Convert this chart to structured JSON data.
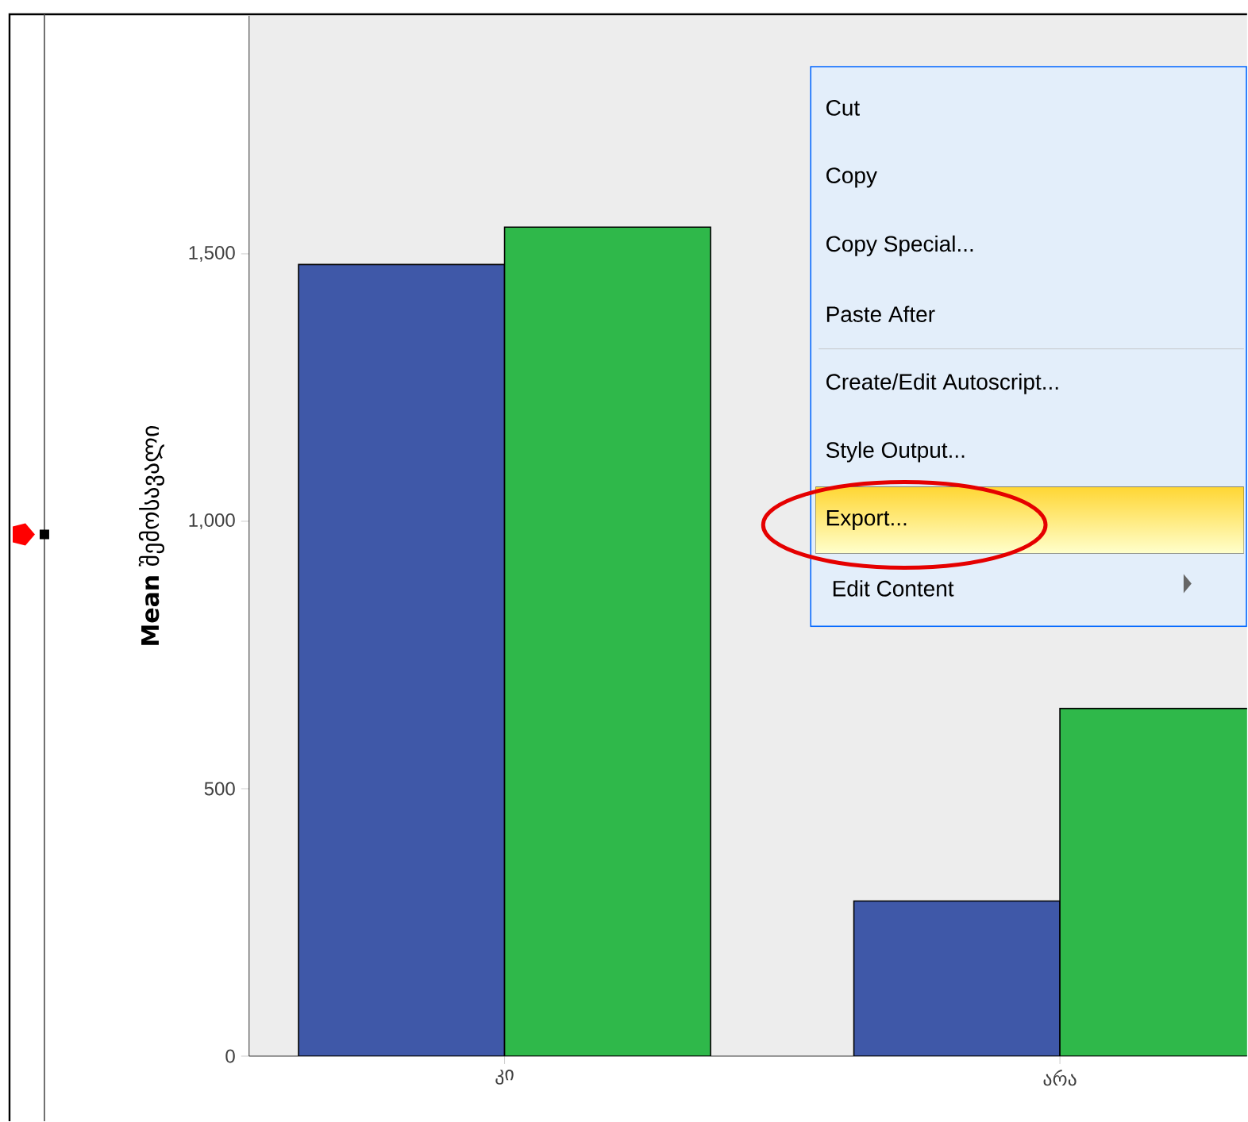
{
  "chart_data": {
    "type": "bar",
    "ylabel": "**Mean** შემოსავალი",
    "categories": [
      "კი",
      "არა"
    ],
    "series": [
      {
        "color": "#3f58a8",
        "values": [
          1480,
          290
        ]
      },
      {
        "color": "#2fb84a",
        "values": [
          1550,
          650
        ]
      }
    ],
    "ylim": [
      0,
      1945
    ],
    "yticks": [
      0,
      {
        "value": 500,
        "label": "500"
      },
      {
        "value": 1000,
        "label": "1,000"
      },
      {
        "value": 1500,
        "label": "1,500"
      }
    ],
    "grid": false,
    "annotations": [
      "Cut",
      "Copy",
      "Copy Special...",
      "Paste After",
      "Create/Edit Autoscript...",
      "Style Output...",
      "Export...",
      "Edit Content"
    ]
  }
}
